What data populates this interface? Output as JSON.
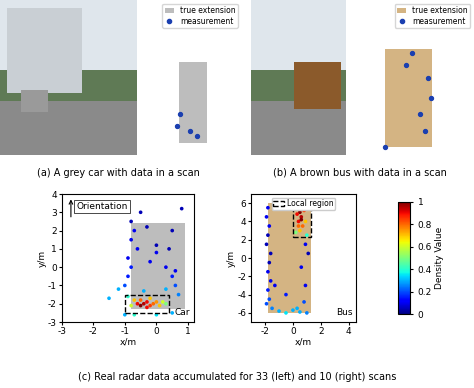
{
  "chart_data": [
    {
      "type": "scatter",
      "caption": "(a) A grey car with data in a scan",
      "xlim": [
        -3,
        3
      ],
      "ylim": [
        -3,
        6
      ],
      "tick_labels": false,
      "legend": "upper right",
      "shapes": [
        {
          "name": "true extension",
          "x": [
            -0.8,
            0.9
          ],
          "y": [
            -2.3,
            2.4
          ],
          "color": "#bdbdbd"
        }
      ],
      "series": [
        {
          "name": "measurement",
          "color": "#1a3fb0",
          "marker": "o",
          "x": [
            -0.7,
            -0.9,
            -0.1,
            0.3
          ],
          "y": [
            -0.6,
            -1.3,
            -1.6,
            -1.9
          ]
        }
      ]
    },
    {
      "type": "scatter",
      "caption": "(b) A brown bus with data in a scan",
      "xlim": [
        -4,
        4
      ],
      "ylim": [
        -7,
        12
      ],
      "tick_labels": false,
      "legend": "upper right",
      "shapes": [
        {
          "name": "true extension",
          "x": [
            -1.8,
            1.3
          ],
          "y": [
            -6,
            6
          ],
          "color": "#d4b483"
        }
      ],
      "series": [
        {
          "name": "measurement",
          "color": "#1a3fb0",
          "marker": "o",
          "x": [
            0.0,
            -0.4,
            1.0,
            1.2,
            0.5,
            0.8,
            -1.8
          ],
          "y": [
            5.5,
            4.0,
            2.5,
            0.0,
            -2.0,
            -4.0,
            -6.0
          ]
        }
      ]
    },
    {
      "type": "scatter",
      "xlabel": "x/m",
      "ylabel": "y/m",
      "annotations": [
        "Orientation",
        "Car"
      ],
      "xlim": [
        -3,
        1.2
      ],
      "ylim": [
        -3,
        4
      ],
      "xticks": [
        -3,
        -2,
        -1,
        0,
        1
      ],
      "yticks": [
        -3,
        -2,
        -1,
        0,
        1,
        2,
        3,
        4
      ],
      "shapes": [
        {
          "x": [
            -0.8,
            0.9
          ],
          "y": [
            -2.3,
            2.4
          ],
          "color": "#bdbdbd"
        },
        {
          "x": [
            -1.0,
            0.4
          ],
          "y": [
            -2.5,
            -1.5
          ],
          "line_style": "dashed"
        }
      ],
      "x": [
        -0.6,
        -0.5,
        -0.4,
        -0.3,
        -0.2,
        -0.1,
        0.0,
        0.1,
        -0.7,
        -0.3,
        -0.5,
        0.2,
        -0.8,
        -0.2,
        0.3,
        -1.2,
        -0.9,
        -1.0,
        -0.7,
        0.0,
        0.5,
        -1.0,
        -0.9,
        -0.8,
        -0.9,
        -0.6,
        -0.8,
        -0.7,
        -0.8,
        -0.5,
        -0.3,
        0.0,
        0.0,
        0.3,
        0.5,
        0.6,
        0.7,
        0.4,
        0.5,
        0.8,
        0.6,
        -0.4,
        0.3,
        -1.5,
        -0.2
      ],
      "y": [
        -2.0,
        -2.1,
        -2.0,
        -1.9,
        -2.1,
        -2.0,
        -1.9,
        -2.1,
        -1.8,
        -2.2,
        -1.8,
        -1.9,
        -2.1,
        -1.7,
        -2.0,
        -1.2,
        -1.6,
        -2.6,
        -2.6,
        -2.6,
        -2.5,
        -1.0,
        -0.5,
        0.0,
        0.5,
        1.0,
        1.5,
        2.0,
        2.5,
        3.0,
        2.2,
        0.8,
        1.2,
        0.0,
        -0.5,
        -1.0,
        -1.5,
        1.0,
        2.0,
        3.2,
        -0.2,
        -1.3,
        -1.2,
        -1.7,
        0.3
      ],
      "density": [
        0.9,
        1.0,
        0.95,
        0.9,
        0.85,
        0.8,
        0.75,
        0.7,
        0.7,
        0.9,
        0.8,
        0.6,
        0.6,
        0.7,
        0.5,
        0.3,
        0.4,
        0.3,
        0.4,
        0.35,
        0.3,
        0.2,
        0.15,
        0.15,
        0.1,
        0.1,
        0.1,
        0.1,
        0.05,
        0.05,
        0.05,
        0.1,
        0.05,
        0.1,
        0.15,
        0.2,
        0.25,
        0.05,
        0.05,
        0.05,
        0.1,
        0.3,
        0.3,
        0.3,
        0.1
      ]
    },
    {
      "type": "scatter",
      "xlabel": "x/m",
      "ylabel": "y/m",
      "annotations": [
        "Bus"
      ],
      "legend": "upper center",
      "xlim": [
        -3,
        4.5
      ],
      "ylim": [
        -7,
        7
      ],
      "xticks": [
        -2,
        0,
        2,
        4
      ],
      "yticks": [
        -6,
        -4,
        -2,
        0,
        2,
        4,
        6
      ],
      "shapes": [
        {
          "x": [
            -1.8,
            1.3
          ],
          "y": [
            -6,
            6
          ],
          "color": "#d4b483"
        },
        {
          "name": "Local region",
          "x": [
            0.0,
            1.3
          ],
          "y": [
            2.3,
            6.0
          ],
          "line_style": "dashed"
        }
      ],
      "x": [
        0.3,
        0.5,
        0.6,
        0.4,
        0.7,
        0.5,
        0.8,
        0.3,
        0.6,
        0.9,
        0.4,
        0.7,
        0.2,
        1.0,
        -1.8,
        -1.9,
        -1.7,
        -1.8,
        -1.9,
        -1.6,
        -1.7,
        -1.8,
        -1.6,
        -1.8,
        -1.7,
        -1.9,
        -1.0,
        -0.5,
        0.0,
        0.5,
        1.0,
        0.3,
        -1.5,
        0.8,
        0.9,
        0.6,
        1.1,
        0.9,
        -0.5,
        -1.3
      ],
      "y": [
        5.5,
        5.0,
        4.5,
        4.0,
        3.5,
        3.0,
        5.2,
        4.8,
        4.2,
        4.0,
        3.5,
        5.8,
        2.8,
        2.5,
        5.5,
        4.5,
        3.5,
        2.5,
        1.5,
        0.5,
        -0.5,
        -1.5,
        -2.5,
        -3.5,
        -4.5,
        -5.0,
        -5.8,
        -6.0,
        -5.7,
        -5.9,
        -6.0,
        -5.5,
        -5.5,
        -4.8,
        -3.0,
        -1.0,
        0.5,
        1.5,
        -4.0,
        -3.0
      ],
      "density": [
        0.9,
        1.0,
        0.95,
        0.9,
        0.8,
        0.7,
        0.85,
        0.9,
        1.0,
        0.7,
        0.8,
        0.7,
        0.5,
        0.4,
        0.1,
        0.1,
        0.1,
        0.05,
        0.05,
        0.05,
        0.05,
        0.1,
        0.1,
        0.15,
        0.2,
        0.2,
        0.3,
        0.35,
        0.3,
        0.3,
        0.25,
        0.3,
        0.25,
        0.2,
        0.1,
        0.1,
        0.05,
        0.1,
        0.15,
        0.1
      ],
      "colorbar": {
        "label": "Density Value",
        "range": [
          0,
          1
        ],
        "ticks": [
          0,
          0.2,
          0.4,
          0.6,
          0.8,
          1
        ]
      }
    }
  ],
  "caption": "(c) Real radar data accumulated for 33 (left) and 10 (right) scans"
}
